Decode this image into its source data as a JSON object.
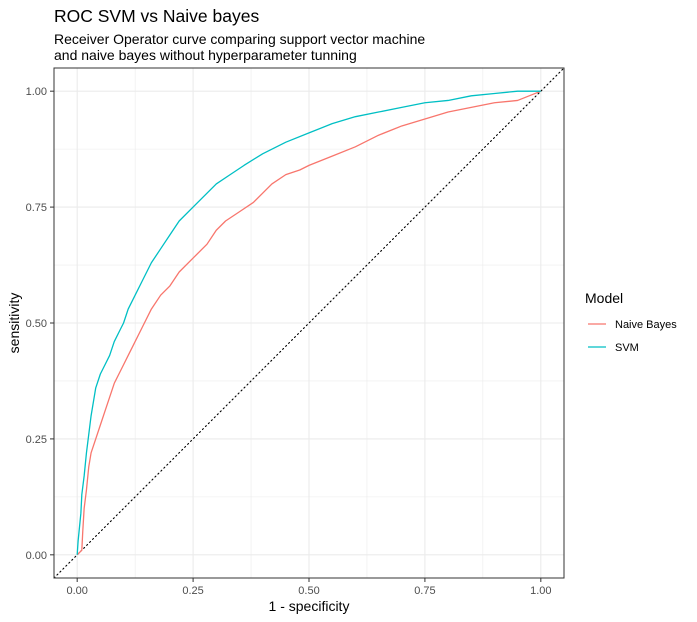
{
  "chart_data": {
    "type": "line",
    "title": "ROC SVM vs Naive bayes",
    "subtitle": "Receiver Operator curve comparing support vector machine\nand naive bayes without hyperparameter tunning",
    "xlabel": "1 - specificity",
    "ylabel": "sensitivity",
    "xlim": [
      -0.05,
      1.05
    ],
    "ylim": [
      -0.05,
      1.05
    ],
    "xticks": [
      0,
      0.25,
      0.5,
      0.75,
      1
    ],
    "xtick_labels": [
      "0.00",
      "0.25",
      "0.50",
      "0.75",
      "1.00"
    ],
    "yticks": [
      0,
      0.25,
      0.5,
      0.75,
      1
    ],
    "ytick_labels": [
      "0.00",
      "0.25",
      "0.50",
      "0.75",
      "1.00"
    ],
    "grid": true,
    "legend": {
      "title": "Model",
      "position": "right"
    },
    "reference_line": {
      "style": "dotted",
      "color": "#000000",
      "x": [
        -0.05,
        1.05
      ],
      "y": [
        -0.05,
        1.05
      ]
    },
    "series": [
      {
        "name": "Naive Bayes",
        "color": "#F8766D",
        "x": [
          0,
          0.005,
          0.01,
          0.012,
          0.015,
          0.02,
          0.025,
          0.03,
          0.04,
          0.05,
          0.06,
          0.07,
          0.08,
          0.09,
          0.1,
          0.11,
          0.12,
          0.14,
          0.16,
          0.18,
          0.2,
          0.22,
          0.25,
          0.28,
          0.3,
          0.32,
          0.35,
          0.38,
          0.4,
          0.42,
          0.45,
          0.48,
          0.5,
          0.55,
          0.6,
          0.65,
          0.7,
          0.75,
          0.8,
          0.85,
          0.9,
          0.95,
          1.0
        ],
        "y": [
          0,
          0.005,
          0.01,
          0.05,
          0.1,
          0.14,
          0.19,
          0.22,
          0.25,
          0.28,
          0.31,
          0.34,
          0.37,
          0.39,
          0.41,
          0.43,
          0.45,
          0.49,
          0.53,
          0.56,
          0.58,
          0.61,
          0.64,
          0.67,
          0.7,
          0.72,
          0.74,
          0.76,
          0.78,
          0.8,
          0.82,
          0.83,
          0.84,
          0.86,
          0.88,
          0.905,
          0.925,
          0.94,
          0.955,
          0.965,
          0.975,
          0.98,
          1.0
        ]
      },
      {
        "name": "SVM",
        "color": "#00BFC4",
        "x": [
          0,
          0.002,
          0.005,
          0.008,
          0.01,
          0.015,
          0.02,
          0.025,
          0.03,
          0.04,
          0.05,
          0.06,
          0.07,
          0.08,
          0.09,
          0.1,
          0.11,
          0.12,
          0.14,
          0.16,
          0.18,
          0.2,
          0.22,
          0.25,
          0.28,
          0.3,
          0.33,
          0.36,
          0.4,
          0.45,
          0.5,
          0.55,
          0.6,
          0.65,
          0.7,
          0.75,
          0.8,
          0.85,
          0.9,
          0.95,
          1.0
        ],
        "y": [
          0,
          0.03,
          0.06,
          0.09,
          0.13,
          0.17,
          0.22,
          0.26,
          0.3,
          0.36,
          0.39,
          0.41,
          0.43,
          0.46,
          0.48,
          0.5,
          0.53,
          0.55,
          0.59,
          0.63,
          0.66,
          0.69,
          0.72,
          0.75,
          0.78,
          0.8,
          0.82,
          0.84,
          0.865,
          0.89,
          0.91,
          0.93,
          0.945,
          0.955,
          0.965,
          0.975,
          0.98,
          0.99,
          0.995,
          1.0,
          1.0
        ]
      }
    ]
  }
}
